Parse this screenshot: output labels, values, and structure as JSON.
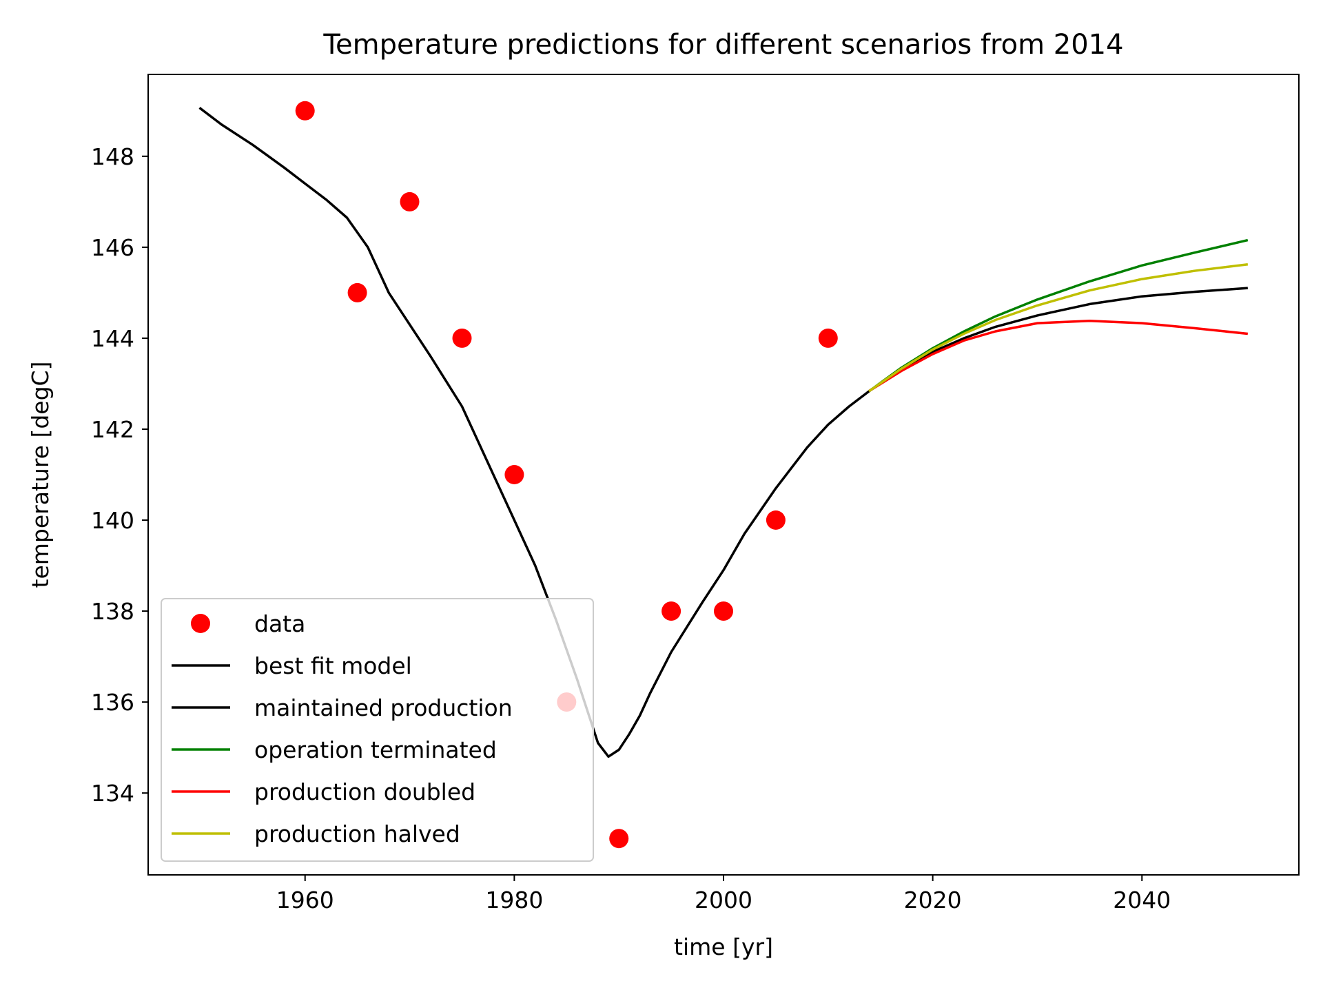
{
  "chart_data": {
    "type": "line",
    "title": "Temperature predictions for different scenarios from 2014",
    "xlabel": "time [yr]",
    "ylabel": "temperature [degC]",
    "xlim": [
      1945,
      2055
    ],
    "ylim": [
      132.2,
      149.8
    ],
    "xticks": [
      1960,
      1980,
      2000,
      2020,
      2040
    ],
    "yticks": [
      134,
      136,
      138,
      140,
      142,
      144,
      146,
      148
    ],
    "grid": false,
    "legend_position": "lower-left",
    "series": [
      {
        "name": "data",
        "color": "#ff0000",
        "style": "markers",
        "x": [
          1960,
          1965,
          1970,
          1975,
          1980,
          1985,
          1990,
          1995,
          2000,
          2005,
          2010
        ],
        "y": [
          149,
          145,
          147,
          144,
          141,
          136,
          133,
          138,
          138,
          140,
          144
        ]
      },
      {
        "name": "best fit model",
        "color": "#000000",
        "style": "line",
        "x": [
          1950,
          1952,
          1955,
          1958,
          1960,
          1962,
          1964,
          1966,
          1968,
          1970,
          1972,
          1975,
          1978,
          1980,
          1982,
          1984,
          1986,
          1988,
          1989,
          1990,
          1991,
          1992,
          1993,
          1995,
          1998,
          2000,
          2002,
          2005,
          2008,
          2010,
          2012,
          2014
        ],
        "y": [
          149.05,
          148.7,
          148.25,
          147.75,
          147.4,
          147.05,
          146.65,
          146.0,
          145.0,
          144.3,
          143.6,
          142.5,
          141.0,
          140.0,
          139.0,
          137.8,
          136.5,
          135.1,
          134.8,
          134.95,
          135.3,
          135.7,
          136.2,
          137.1,
          138.2,
          138.9,
          139.7,
          140.7,
          141.6,
          142.1,
          142.5,
          142.85
        ]
      },
      {
        "name": "maintained production",
        "color": "#000000",
        "style": "line",
        "x": [
          2014,
          2017,
          2020,
          2023,
          2026,
          2030,
          2035,
          2040,
          2045,
          2050
        ],
        "y": [
          142.85,
          143.3,
          143.7,
          144.0,
          144.25,
          144.5,
          144.75,
          144.92,
          145.02,
          145.1
        ]
      },
      {
        "name": "operation terminated",
        "color": "#008000",
        "style": "line",
        "x": [
          2014,
          2017,
          2020,
          2023,
          2026,
          2030,
          2035,
          2040,
          2045,
          2050
        ],
        "y": [
          142.85,
          143.35,
          143.78,
          144.15,
          144.48,
          144.85,
          145.25,
          145.6,
          145.88,
          146.15
        ]
      },
      {
        "name": "production doubled",
        "color": "#ff0000",
        "style": "line",
        "x": [
          2014,
          2017,
          2020,
          2023,
          2026,
          2030,
          2035,
          2040,
          2045,
          2050
        ],
        "y": [
          142.85,
          143.28,
          143.65,
          143.95,
          144.15,
          144.33,
          144.38,
          144.33,
          144.22,
          144.1
        ]
      },
      {
        "name": "production halved",
        "color": "#bfbf00",
        "style": "line",
        "x": [
          2014,
          2017,
          2020,
          2023,
          2026,
          2030,
          2035,
          2040,
          2045,
          2050
        ],
        "y": [
          142.85,
          143.33,
          143.75,
          144.1,
          144.4,
          144.72,
          145.05,
          145.3,
          145.48,
          145.62
        ]
      }
    ]
  }
}
